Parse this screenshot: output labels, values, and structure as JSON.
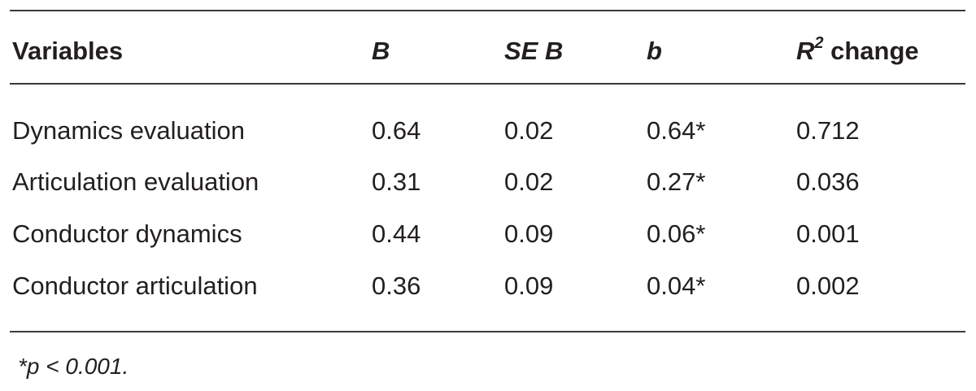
{
  "table": {
    "headers": {
      "variables": "Variables",
      "b_unstd": "B",
      "se_b": "SE B",
      "beta": "b",
      "r2_symbol": "R",
      "r2_exp": "2",
      "r2_change": " change"
    },
    "rows": [
      {
        "variable": "Dynamics evaluation",
        "B": "0.64",
        "SE_B": "0.02",
        "b": "0.64*",
        "R2_change": "0.712"
      },
      {
        "variable": "Articulation evaluation",
        "B": "0.31",
        "SE_B": "0.02",
        "b": "0.27*",
        "R2_change": "0.036"
      },
      {
        "variable": "Conductor dynamics",
        "B": "0.44",
        "SE_B": "0.09",
        "b": "0.06*",
        "R2_change": "0.001"
      },
      {
        "variable": "Conductor articulation",
        "B": "0.36",
        "SE_B": "0.09",
        "b": "0.04*",
        "R2_change": "0.002"
      }
    ],
    "footnote": "*p < 0.001."
  }
}
